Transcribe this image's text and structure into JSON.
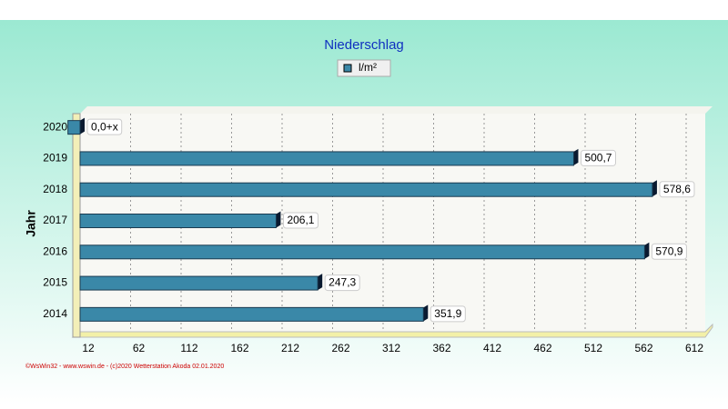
{
  "chart_data": {
    "type": "hbar",
    "title": "Niederschlag",
    "ylabel": "Jahr",
    "footer": "©WsWin32 - www.wswin.de - (c)2020 Wetterstation Akoda 02.01.2020",
    "categories": [
      "2020",
      "2019",
      "2018",
      "2017",
      "2016",
      "2015",
      "2014"
    ],
    "series": [
      {
        "name": "l/m²",
        "color": "#3a88a8",
        "values": [
          0,
          500.7,
          578.6,
          206.1,
          570.9,
          247.3,
          351.9
        ],
        "value_labels": [
          "0,0+x",
          "500,7",
          "578,6",
          "206,1",
          "570,9",
          "247,3",
          "351,9"
        ]
      }
    ],
    "xlim": [
      12,
      612
    ],
    "xticks": [
      12,
      62,
      112,
      162,
      212,
      262,
      312,
      362,
      412,
      462,
      512,
      562,
      612
    ],
    "grid": true
  }
}
